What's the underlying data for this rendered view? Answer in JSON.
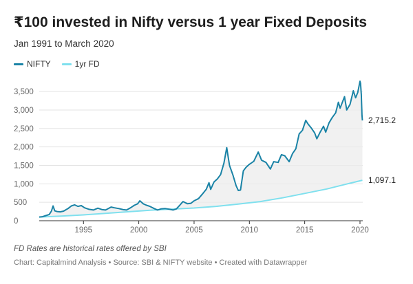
{
  "header": {
    "title": "₹100 invested in Nifty versus 1 year Fixed Deposits",
    "subtitle": "Jan 1991 to March 2020"
  },
  "notes": {
    "fd_note": "FD Rates are historical rates offered by SBI",
    "footer": "Chart: Capitalmind Analysis • Source: SBI & NIFTY website • Created with Datawrapper"
  },
  "chart_data": {
    "type": "line",
    "xlim": [
      1991,
      2020.25
    ],
    "ylim": [
      0,
      3800
    ],
    "x_ticks": [
      1995,
      2000,
      2005,
      2010,
      2015,
      2020
    ],
    "x_tick_labels": [
      "1995",
      "2000",
      "2005",
      "2010",
      "2015",
      "2020"
    ],
    "y_ticks": [
      0,
      500,
      1000,
      1500,
      2000,
      2500,
      3000,
      3500
    ],
    "y_tick_labels": [
      "0",
      "500",
      "1,000",
      "1,500",
      "2,000",
      "2,500",
      "3,000",
      "3,500"
    ],
    "grid": true,
    "legend_position": "top-left",
    "shade_between_series": true,
    "series": [
      {
        "name": "NIFTY",
        "color": "#1a83a6",
        "end_label": "2,715.2",
        "points": [
          [
            1991.0,
            100
          ],
          [
            1991.3,
            110
          ],
          [
            1991.6,
            140
          ],
          [
            1991.9,
            170
          ],
          [
            1992.1,
            260
          ],
          [
            1992.25,
            400
          ],
          [
            1992.4,
            270
          ],
          [
            1992.6,
            250
          ],
          [
            1992.9,
            240
          ],
          [
            1993.2,
            260
          ],
          [
            1993.6,
            330
          ],
          [
            1993.9,
            400
          ],
          [
            1994.2,
            430
          ],
          [
            1994.5,
            390
          ],
          [
            1994.8,
            410
          ],
          [
            1995.1,
            350
          ],
          [
            1995.5,
            310
          ],
          [
            1995.9,
            290
          ],
          [
            1996.3,
            340
          ],
          [
            1996.7,
            300
          ],
          [
            1997.0,
            290
          ],
          [
            1997.5,
            370
          ],
          [
            1997.8,
            350
          ],
          [
            1998.2,
            330
          ],
          [
            1998.6,
            300
          ],
          [
            1998.9,
            290
          ],
          [
            1999.3,
            360
          ],
          [
            1999.6,
            420
          ],
          [
            1999.9,
            460
          ],
          [
            2000.1,
            540
          ],
          [
            2000.4,
            460
          ],
          [
            2000.7,
            420
          ],
          [
            2001.0,
            390
          ],
          [
            2001.4,
            330
          ],
          [
            2001.7,
            290
          ],
          [
            2002.0,
            320
          ],
          [
            2002.4,
            330
          ],
          [
            2002.8,
            310
          ],
          [
            2003.1,
            290
          ],
          [
            2003.4,
            320
          ],
          [
            2003.7,
            420
          ],
          [
            2004.0,
            520
          ],
          [
            2004.4,
            460
          ],
          [
            2004.7,
            470
          ],
          [
            2005.0,
            540
          ],
          [
            2005.4,
            600
          ],
          [
            2005.8,
            740
          ],
          [
            2006.1,
            850
          ],
          [
            2006.35,
            1030
          ],
          [
            2006.5,
            850
          ],
          [
            2006.8,
            1050
          ],
          [
            2007.1,
            1130
          ],
          [
            2007.4,
            1250
          ],
          [
            2007.7,
            1560
          ],
          [
            2007.95,
            1980
          ],
          [
            2008.2,
            1500
          ],
          [
            2008.5,
            1250
          ],
          [
            2008.8,
            950
          ],
          [
            2009.0,
            820
          ],
          [
            2009.2,
            830
          ],
          [
            2009.45,
            1350
          ],
          [
            2009.7,
            1450
          ],
          [
            2010.0,
            1530
          ],
          [
            2010.4,
            1610
          ],
          [
            2010.8,
            1860
          ],
          [
            2011.1,
            1640
          ],
          [
            2011.5,
            1580
          ],
          [
            2011.9,
            1400
          ],
          [
            2012.2,
            1600
          ],
          [
            2012.6,
            1580
          ],
          [
            2012.9,
            1790
          ],
          [
            2013.2,
            1760
          ],
          [
            2013.6,
            1600
          ],
          [
            2013.9,
            1820
          ],
          [
            2014.2,
            1950
          ],
          [
            2014.5,
            2350
          ],
          [
            2014.8,
            2450
          ],
          [
            2015.1,
            2720
          ],
          [
            2015.3,
            2620
          ],
          [
            2015.6,
            2510
          ],
          [
            2015.9,
            2380
          ],
          [
            2016.1,
            2220
          ],
          [
            2016.4,
            2400
          ],
          [
            2016.7,
            2560
          ],
          [
            2016.9,
            2400
          ],
          [
            2017.2,
            2650
          ],
          [
            2017.5,
            2800
          ],
          [
            2017.8,
            2920
          ],
          [
            2018.05,
            3210
          ],
          [
            2018.2,
            3050
          ],
          [
            2018.6,
            3360
          ],
          [
            2018.8,
            3000
          ],
          [
            2019.1,
            3150
          ],
          [
            2019.4,
            3520
          ],
          [
            2019.6,
            3330
          ],
          [
            2019.8,
            3480
          ],
          [
            2020.0,
            3780
          ],
          [
            2020.05,
            3720
          ],
          [
            2020.12,
            3420
          ],
          [
            2020.18,
            2850
          ],
          [
            2020.22,
            2715.2
          ]
        ]
      },
      {
        "name": "1yr FD",
        "color": "#7fe0ee",
        "end_label": "1,097.1",
        "points": [
          [
            1991.0,
            100
          ],
          [
            1993.0,
            127
          ],
          [
            1995.0,
            158
          ],
          [
            1997.0,
            200
          ],
          [
            1999.0,
            243
          ],
          [
            2001.0,
            285
          ],
          [
            2003.0,
            315
          ],
          [
            2005.0,
            345
          ],
          [
            2007.0,
            390
          ],
          [
            2009.0,
            450
          ],
          [
            2011.0,
            520
          ],
          [
            2013.0,
            620
          ],
          [
            2015.0,
            740
          ],
          [
            2017.0,
            860
          ],
          [
            2019.0,
            1010
          ],
          [
            2020.22,
            1097.1
          ]
        ]
      }
    ]
  }
}
